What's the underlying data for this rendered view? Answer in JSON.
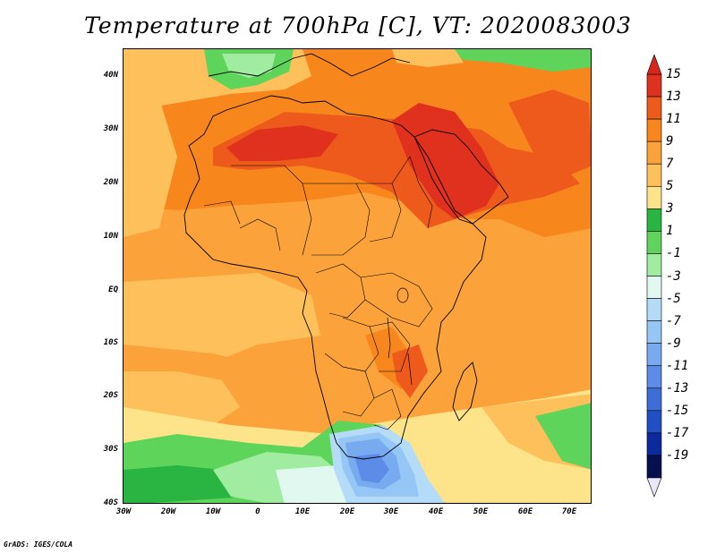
{
  "title": "Temperature at 700hPa [C], VT: 2020083003",
  "credit": "GrADS: IGES/COLA",
  "x_ticks": [
    "30W",
    "20W",
    "10W",
    "0",
    "10E",
    "20E",
    "30E",
    "40E",
    "50E",
    "60E",
    "70E"
  ],
  "y_ticks": [
    "40N",
    "30N",
    "20N",
    "10N",
    "EQ",
    "10S",
    "20S",
    "30S",
    "40S"
  ],
  "colorbar": {
    "labels": [
      "15",
      "13",
      "11",
      "9",
      "7",
      "5",
      "3",
      "1",
      "-1",
      "-3",
      "-5",
      "-7",
      "-9",
      "-11",
      "-13",
      "-15",
      "-17",
      "-19"
    ],
    "colors": [
      "#e0301e",
      "#ee5a1c",
      "#f7861c",
      "#fba33a",
      "#fdc05a",
      "#fde48a",
      "#2ab543",
      "#5ed45a",
      "#a0eca0",
      "#e0f8f0",
      "#b4dcf8",
      "#96c6f6",
      "#78aaf0",
      "#5c8ce8",
      "#3c6ed6",
      "#2050c4",
      "#0c2a9c",
      "#06104f"
    ]
  },
  "map": {
    "region": "Africa",
    "lon_range": [
      -30,
      75
    ],
    "lat_range": [
      -40,
      45
    ],
    "field_colors": {
      "ocean_base": "#fba33a",
      "warm_ring": "#fdc05a",
      "band_cool": "#fde48a",
      "hot_sahara": "#ee5a1c",
      "very_hot": "#e0301e",
      "hot_bg": "#f7861c",
      "green": "#5ed45a",
      "dark_green": "#2ab543",
      "pale_green": "#a0eca0",
      "cold_light": "#b4dcf8",
      "cold_mid": "#96c6f6",
      "cold_deep": "#78aaf0",
      "cold_deeper": "#5c8ce8"
    }
  }
}
